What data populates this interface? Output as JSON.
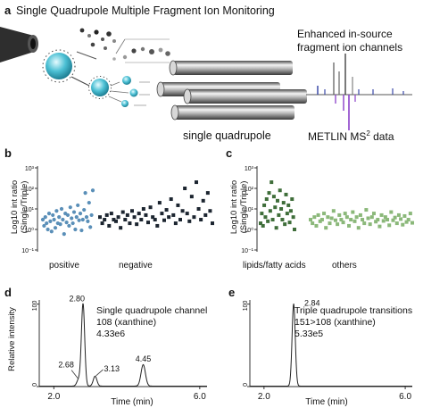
{
  "panel_a": {
    "letter": "a",
    "title": "Single Quadrupole Multiple Fragment Ion Monitoring",
    "channels_label_line1": "Enhanced in-source",
    "channels_label_line2": "fragment ion channels",
    "quad_label": "single quadrupole",
    "db_label_main": "METLIN MS",
    "db_label_sup": "2",
    "db_label_tail": " data",
    "colors": {
      "droplet": "#3fb6c9",
      "rod": "#9a9a9a",
      "ms2": "#8a3fc9",
      "spectrum": "#3b4aa8"
    }
  },
  "chart_data": [
    {
      "panel": "b",
      "type": "scatter",
      "ylabel_line1": "Log10 int ratio",
      "ylabel_line2": "(Single/Triple)",
      "yscale": "log",
      "ylim": [
        0.1,
        1000
      ],
      "yticks": [
        "10³",
        "10²",
        "10¹",
        "10⁰",
        "10⁻¹"
      ],
      "groups": [
        {
          "label": "positive",
          "color": "#5a8fb8",
          "values": [
            3,
            1.5,
            4,
            2,
            1,
            6,
            2.5,
            0.8,
            5,
            3,
            1.2,
            8,
            2,
            4,
            1.8,
            10,
            3,
            0.6,
            6,
            2.2,
            5,
            1.5,
            12,
            3.5,
            2,
            7,
            1,
            4,
            15,
            2.8,
            6,
            0.9,
            3,
            9,
            60,
            4,
            2.5,
            20,
            1.3,
            5,
            80
          ]
        },
        {
          "label": "negative",
          "color": "#1c2530",
          "values": [
            4,
            2,
            3,
            5,
            1.5,
            6,
            3,
            2.5,
            4,
            1.2,
            7,
            3,
            5,
            2,
            8,
            4,
            1.8,
            6,
            3,
            10,
            5,
            2.2,
            12,
            4,
            3,
            1.5,
            20,
            6,
            2.8,
            9,
            4,
            30,
            5,
            2,
            15,
            3,
            8,
            100,
            6,
            2.5,
            40,
            4,
            200,
            10,
            3,
            25,
            5,
            60,
            8,
            2
          ]
        }
      ]
    },
    {
      "panel": "c",
      "type": "scatter",
      "ylabel_line1": "Log10 int ratio",
      "ylabel_line2": "(Single/Triple)",
      "yscale": "log",
      "ylim": [
        0.1,
        1000
      ],
      "yticks": [
        "10³",
        "10²",
        "10¹",
        "10⁰",
        "10⁻¹"
      ],
      "groups": [
        {
          "label": "lipids/fatty acids",
          "color": "#3f6e3a",
          "values": [
            2,
            6,
            1.5,
            15,
            4,
            30,
            2.5,
            60,
            8,
            200,
            3,
            40,
            12,
            1.2,
            25,
            5,
            80,
            10,
            3,
            20,
            1.8,
            50,
            6,
            15,
            2.2,
            8,
            30,
            4,
            1
          ]
        },
        {
          "label": "others",
          "color": "#8bb87a",
          "values": [
            3,
            2,
            4,
            1.5,
            5,
            2.5,
            3,
            6,
            1.2,
            4,
            2,
            3.5,
            8,
            2.8,
            1.8,
            5,
            3,
            2.2,
            6,
            4,
            1.5,
            3,
            7,
            2.5,
            4,
            1.2,
            5,
            3,
            2,
            9,
            3.5,
            1.8,
            4,
            6,
            2.4,
            3,
            1.4,
            5,
            2.6,
            4,
            3,
            1.6,
            7,
            2.8,
            3.8,
            2,
            5,
            3.2,
            1.7,
            4.5,
            2.3,
            3,
            6,
            2.1
          ]
        }
      ]
    },
    {
      "panel": "d",
      "type": "line",
      "xlabel": "Time (min)",
      "ylabel": "Relative intensity",
      "xlim": [
        1.6,
        6.2
      ],
      "ylim": [
        0,
        105
      ],
      "xticks": [
        2.0,
        6.0
      ],
      "xtick_labels": [
        "2.0",
        "6.0"
      ],
      "ytick_labels": [
        "100",
        "0"
      ],
      "peaks": [
        {
          "label": "2.68",
          "x": 2.68,
          "y": 8,
          "width": 0.05
        },
        {
          "label": "2.80",
          "x": 2.8,
          "y": 100,
          "width": 0.045
        },
        {
          "label": "3.13",
          "x": 3.13,
          "y": 12,
          "width": 0.05
        },
        {
          "label": "4.45",
          "x": 4.45,
          "y": 26,
          "width": 0.06
        }
      ],
      "annotation_line1": "Single quadrupole channel",
      "annotation_line2": "108 (xanthine)",
      "annotation_line3": "4.33e6"
    },
    {
      "panel": "e",
      "type": "line",
      "xlabel": "Time (min)",
      "ylabel": "",
      "xlim": [
        1.6,
        6.2
      ],
      "ylim": [
        0,
        105
      ],
      "xticks": [
        2.0,
        6.0
      ],
      "xtick_labels": [
        "2.0",
        "6.0"
      ],
      "ytick_labels": [
        "100",
        "0"
      ],
      "peaks": [
        {
          "label": "2.84",
          "x": 2.84,
          "y": 100,
          "width": 0.045
        }
      ],
      "annotation_line1": "Triple quadrupole transitions",
      "annotation_line2": "151>108 (xanthine)",
      "annotation_line3": "5.33e5"
    }
  ]
}
